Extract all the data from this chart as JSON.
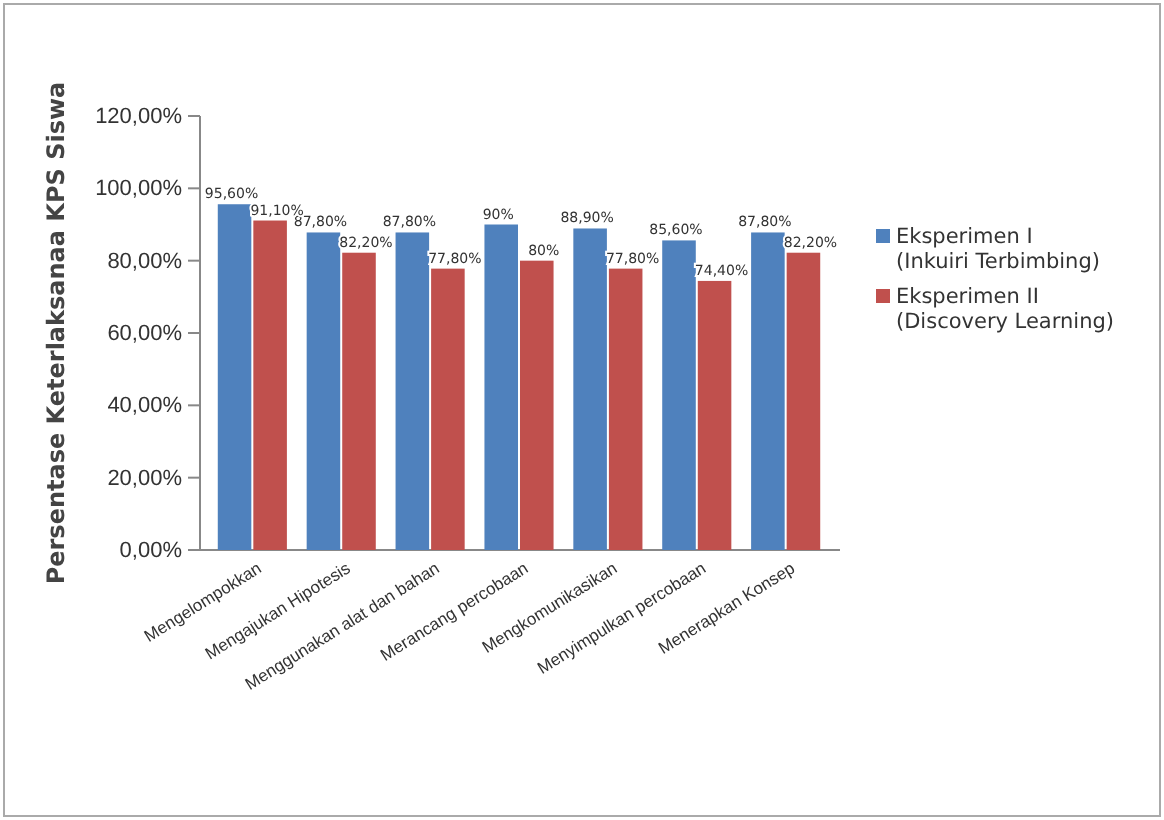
{
  "chart_data": {
    "type": "bar",
    "ylabel": "Persentase Keterlaksanaa KPS Siswa",
    "categories": [
      "Mengelompokkan",
      "Mengajukan Hipotesis",
      "Menggunakan alat dan bahan",
      "Merancang percobaan",
      "Mengkomunikasikan",
      "Menyimpulkan percobaan",
      "Menerapkan Konsep"
    ],
    "series": [
      {
        "name": "Eksperimen I (Inkuiri Terbimbing)",
        "color": "#4f81bd",
        "values": [
          95.6,
          87.8,
          87.8,
          90,
          88.9,
          85.6,
          87.8
        ],
        "value_labels": [
          "95,60%",
          "87,80%",
          "87,80%",
          "90%",
          "88,90%",
          "85,60%",
          "87,80%"
        ]
      },
      {
        "name": "Eksperimen II (Discovery Learning)",
        "color": "#c0504d",
        "values": [
          91.1,
          82.2,
          77.8,
          80,
          77.8,
          74.4,
          82.2
        ],
        "value_labels": [
          "91,10%",
          "82,20%",
          "77,80%",
          "80%",
          "77,80%",
          "74,40%",
          "82,20%"
        ]
      }
    ],
    "ylim": [
      0,
      120
    ],
    "yticks": [
      {
        "value": 0,
        "label": "0,00%"
      },
      {
        "value": 20,
        "label": "20,00%"
      },
      {
        "value": 40,
        "label": "40,00%"
      },
      {
        "value": 60,
        "label": "60,00%"
      },
      {
        "value": 80,
        "label": "80,00%"
      },
      {
        "value": 100,
        "label": "100,00%"
      },
      {
        "value": 120,
        "label": "120,00%"
      }
    ],
    "grid": false,
    "legend": "right"
  }
}
